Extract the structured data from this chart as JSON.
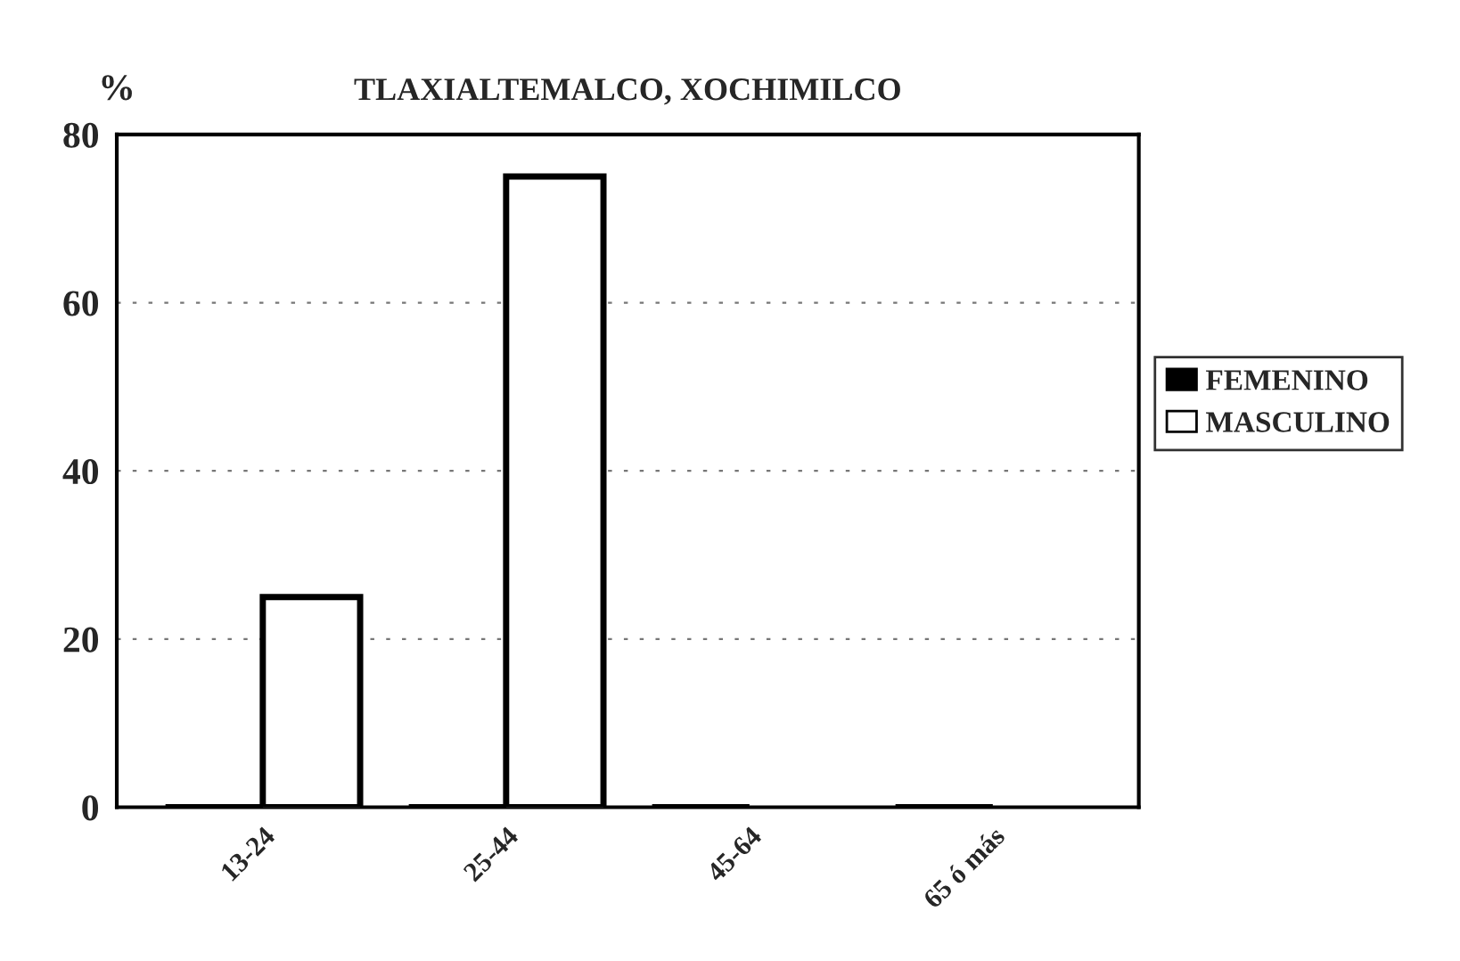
{
  "chart_data": {
    "type": "bar",
    "title": "TLAXIALTEMALCO, XOCHIMILCO",
    "ylabel": "%",
    "categories": [
      "13-24",
      "25-44",
      "45-64",
      "65 ó más"
    ],
    "series": [
      {
        "name": "FEMENINO",
        "color": "#000000",
        "values": [
          0,
          0,
          0,
          0
        ]
      },
      {
        "name": "MASCULINO",
        "color": "#ffffff",
        "values": [
          25,
          75,
          0,
          0
        ]
      }
    ],
    "ylim": [
      0,
      80
    ],
    "yticks": [
      0,
      20,
      40,
      60,
      80
    ],
    "grid": "y",
    "legend": "right"
  }
}
